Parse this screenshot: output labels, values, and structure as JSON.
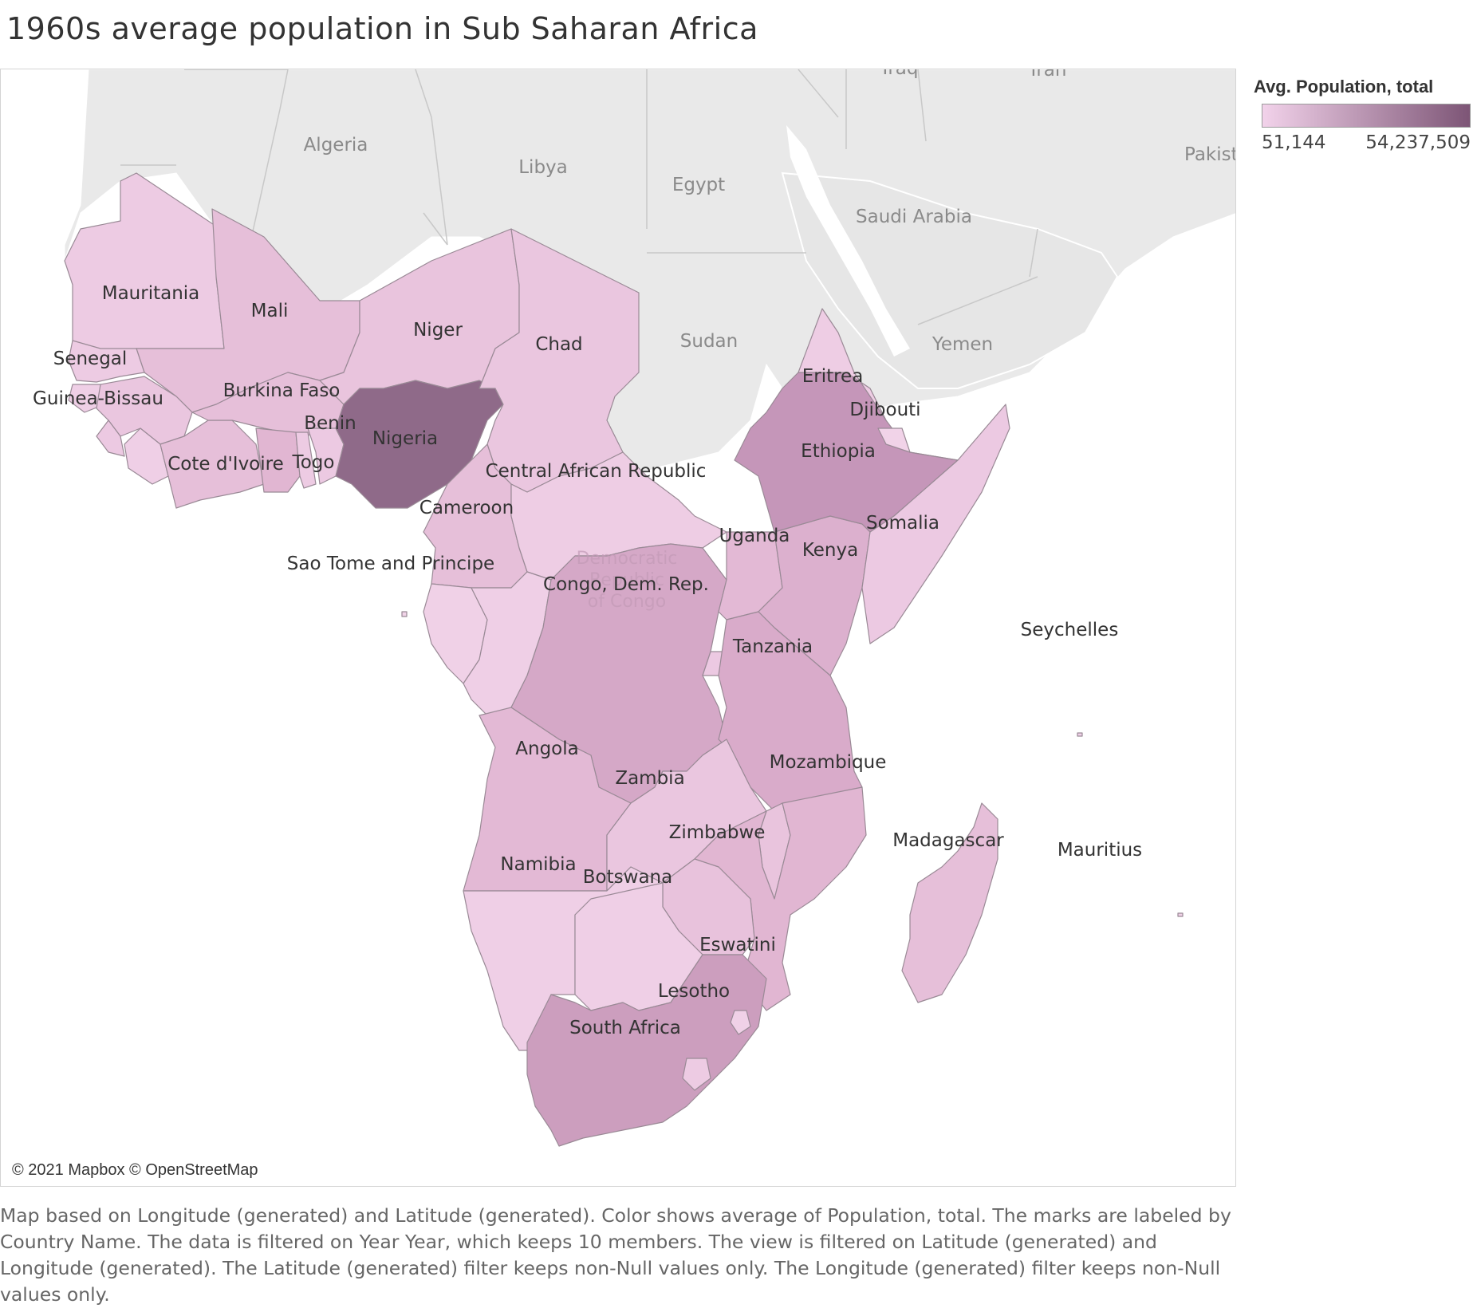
{
  "title": "1960s average population in Sub Saharan Africa",
  "legend": {
    "title": "Avg. Population, total",
    "min_label": "51,144",
    "max_label": "54,237,509",
    "color_low": "#f2d2ea",
    "color_high": "#7d5576"
  },
  "attribution": "© 2021 Mapbox © OpenStreetMap",
  "caption": "Map based on Longitude (generated) and Latitude (generated).  Color shows average of Population, total.  The marks are labeled by Country Name. The data is filtered on Year Year, which keeps 10 members. The view is filtered on Latitude (generated) and Longitude (generated). The Latitude (generated) filter keeps non-Null values only. The Longitude (generated) filter keeps non-Null values only.",
  "colors": {
    "base_land": "#e9e9e9",
    "border": "#9a8a96",
    "ocean": "#ffffff"
  },
  "base_labels": {
    "algeria": "Algeria",
    "libya": "Libya",
    "egypt": "Egypt",
    "saudi_arabia": "Saudi Arabia",
    "sudan": "Sudan",
    "yemen": "Yemen",
    "iraq": "Iraq",
    "iran": "Iran",
    "pakistan": "Pakist"
  },
  "ghost_labels": {
    "drc_line1": "Democratic",
    "drc_line2": "Republic",
    "drc_line3": "of Congo",
    "south_africa": "South Africa"
  },
  "countries": {
    "mauritania": {
      "label": "Mauritania",
      "color": "#edcbe3"
    },
    "mali": {
      "label": "Mali",
      "color": "#e6bfd9"
    },
    "senegal": {
      "label": "Senegal",
      "color": "#edcbe3"
    },
    "guinea_bissau": {
      "label": "Guinea-Bissau",
      "color": "#efcfe6"
    },
    "guinea": {
      "label": "",
      "color": "#eac6df"
    },
    "burkina_faso": {
      "label": "Burkina Faso",
      "color": "#e6bfd9"
    },
    "niger": {
      "label": "Niger",
      "color": "#e9c4dd"
    },
    "chad": {
      "label": "Chad",
      "color": "#eac6df"
    },
    "nigeria": {
      "label": "Nigeria",
      "color": "#8f6a89"
    },
    "benin": {
      "label": "Benin",
      "color": "#ecc9e2"
    },
    "togo": {
      "label": "Togo",
      "color": "#edcbe3"
    },
    "ghana": {
      "label": "",
      "color": "#e1b6d2"
    },
    "cote_divoire": {
      "label": "Cote d'Ivoire",
      "color": "#e6bfd9"
    },
    "liberia": {
      "label": "",
      "color": "#efcfe6"
    },
    "sierra_leone": {
      "label": "",
      "color": "#ecc9e2"
    },
    "cameroon": {
      "label": "Cameroon",
      "color": "#e6bfd9"
    },
    "car": {
      "label": "Central African Republic",
      "color": "#eecde4"
    },
    "congo": {
      "label": "",
      "color": "#efcfe6"
    },
    "gabon": {
      "label": "",
      "color": "#f0d1e7"
    },
    "sao_tome": {
      "label": "Sao Tome and Principe",
      "color": "#f1d3e8"
    },
    "drc": {
      "label": "Congo, Dem. Rep.",
      "color": "#d5a8c7"
    },
    "uganda": {
      "label": "Uganda",
      "color": "#e3b9d5"
    },
    "kenya": {
      "label": "Kenya",
      "color": "#dcb0ce"
    },
    "ethiopia": {
      "label": "Ethiopia",
      "color": "#c596b9"
    },
    "eritrea": {
      "label": "Eritrea",
      "color": "#eecde4"
    },
    "djibouti": {
      "label": "Djibouti",
      "color": "#f1d3e8"
    },
    "somalia": {
      "label": "Somalia",
      "color": "#ecc9e2"
    },
    "rwanda": {
      "label": "",
      "color": "#ecc9e2"
    },
    "tanzania": {
      "label": "Tanzania",
      "color": "#d9abca"
    },
    "angola": {
      "label": "Angola",
      "color": "#e3b9d5"
    },
    "zambia": {
      "label": "Zambia",
      "color": "#eac6df"
    },
    "malawi": {
      "label": "",
      "color": "#e9c4dd"
    },
    "mozambique": {
      "label": "Mozambique",
      "color": "#e1b6d2"
    },
    "zimbabwe": {
      "label": "Zimbabwe",
      "color": "#e8c2dc"
    },
    "namibia": {
      "label": "Namibia",
      "color": "#efcfe6"
    },
    "botswana": {
      "label": "Botswana",
      "color": "#efcfe6"
    },
    "south_africa": {
      "label": "South Africa",
      "color": "#cc9ebe"
    },
    "lesotho": {
      "label": "Lesotho",
      "color": "#edcbe3"
    },
    "eswatini": {
      "label": "Eswatini",
      "color": "#f0d1e7"
    },
    "madagascar": {
      "label": "Madagascar",
      "color": "#e6bfd9"
    },
    "seychelles": {
      "label": "Seychelles",
      "color": "#f2d2ea"
    },
    "mauritius": {
      "label": "Mauritius",
      "color": "#f0d1e7"
    }
  }
}
